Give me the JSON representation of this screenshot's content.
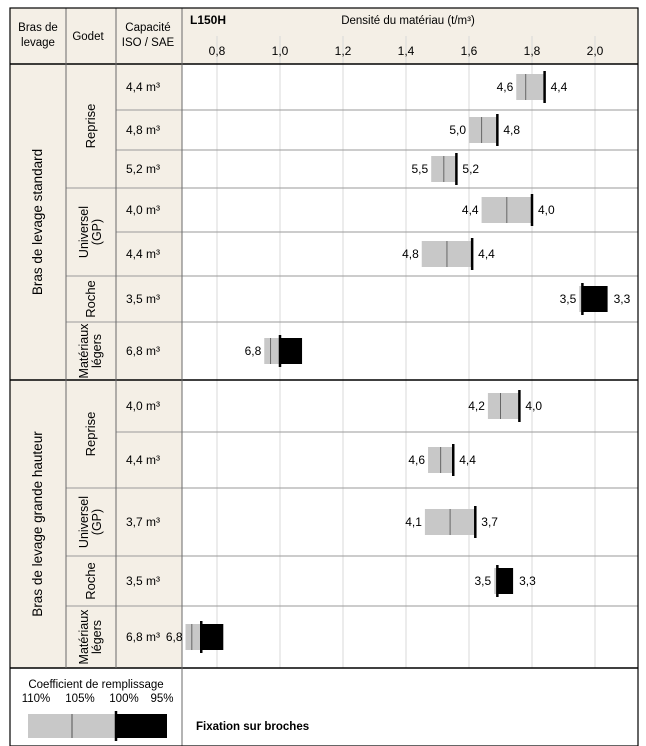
{
  "header": {
    "col_arm": "Bras de levage",
    "col_bucket": "Godet",
    "col_capacity": "Capacité ISO / SAE",
    "model": "L150H",
    "axis_title": "Densité du matériau (t/m³)"
  },
  "groups": [
    {
      "arm": "Bras de levage standard",
      "buckets": [
        {
          "type": "Reprise",
          "rows": [
            "4,4 m³",
            "4,8 m³",
            "5,2 m³"
          ]
        },
        {
          "type": "Universel (GP)",
          "rows": [
            "4,0 m³",
            "4,4 m³"
          ]
        },
        {
          "type": "Roche",
          "rows": [
            "3,5 m³"
          ]
        },
        {
          "type": "Matériaux légers",
          "rows": [
            "6,8 m³"
          ]
        }
      ]
    },
    {
      "arm": "Bras de levage grande hauteur",
      "buckets": [
        {
          "type": "Reprise",
          "rows": [
            "4,0 m³",
            "4,4 m³"
          ]
        },
        {
          "type": "Universel (GP)",
          "rows": [
            "3,7 m³"
          ]
        },
        {
          "type": "Roche",
          "rows": [
            "3,5 m³"
          ]
        },
        {
          "type": "Matériaux légers",
          "rows": [
            "6,8 m³"
          ]
        }
      ]
    }
  ],
  "legend": {
    "title": "Coefficient de remplissage",
    "percents": [
      "110%",
      "105%",
      "100%",
      "95%"
    ],
    "note": "Fixation sur broches"
  },
  "colors": {
    "grey_bar": "#c8c8c8",
    "black_bar": "#000000",
    "header_bg": "#f4efe6",
    "grid": "#d8d8d8",
    "border": "#000000"
  },
  "chart_data": {
    "type": "bar",
    "title": "L150H",
    "xlabel": "Densité du matériau (t/m³)",
    "xlim": [
      0.63,
      2.17
    ],
    "xticks": [
      "0,8",
      "1,0",
      "1,2",
      "1,4",
      "1,6",
      "1,8",
      "2,0"
    ],
    "rows": [
      {
        "arm": "Bras de levage standard",
        "bucket": "Reprise",
        "capacity": "4,4 m³",
        "d110": 1.75,
        "d105": 1.78,
        "d100": 1.84,
        "d95": 1.84,
        "label_left": "4,6",
        "label_right": "4,4"
      },
      {
        "arm": "Bras de levage standard",
        "bucket": "Reprise",
        "capacity": "4,8 m³",
        "d110": 1.6,
        "d105": 1.64,
        "d100": 1.69,
        "d95": 1.69,
        "label_left": "5,0",
        "label_right": "4,8"
      },
      {
        "arm": "Bras de levage standard",
        "bucket": "Reprise",
        "capacity": "5,2 m³",
        "d110": 1.48,
        "d105": 1.52,
        "d100": 1.56,
        "d95": 1.56,
        "label_left": "5,5",
        "label_right": "5,2"
      },
      {
        "arm": "Bras de levage standard",
        "bucket": "Universel (GP)",
        "capacity": "4,0 m³",
        "d110": 1.64,
        "d105": 1.72,
        "d100": 1.8,
        "d95": 1.8,
        "label_left": "4,4",
        "label_right": "4,0"
      },
      {
        "arm": "Bras de levage standard",
        "bucket": "Universel (GP)",
        "capacity": "4,4 m³",
        "d110": 1.45,
        "d105": 1.53,
        "d100": 1.61,
        "d95": 1.61,
        "label_left": "4,8",
        "label_right": "4,4"
      },
      {
        "arm": "Bras de levage standard",
        "bucket": "Roche",
        "capacity": "3,5 m³",
        "d110": 1.95,
        "d105": 1.95,
        "d100": 1.96,
        "d95": 2.04,
        "label_left": "3,5",
        "label_right": "3,3"
      },
      {
        "arm": "Bras de levage standard",
        "bucket": "Matériaux légers",
        "capacity": "6,8 m³",
        "d110": 0.95,
        "d105": 0.97,
        "d100": 1.0,
        "d95": 1.07,
        "label_left": "6,8",
        "label_right": ""
      },
      {
        "arm": "Bras de levage grande hauteur",
        "bucket": "Reprise",
        "capacity": "4,0 m³",
        "d110": 1.66,
        "d105": 1.7,
        "d100": 1.76,
        "d95": 1.76,
        "label_left": "4,2",
        "label_right": "4,0"
      },
      {
        "arm": "Bras de levage grande hauteur",
        "bucket": "Reprise",
        "capacity": "4,4 m³",
        "d110": 1.47,
        "d105": 1.51,
        "d100": 1.55,
        "d95": 1.55,
        "label_left": "4,6",
        "label_right": "4,4"
      },
      {
        "arm": "Bras de levage grande hauteur",
        "bucket": "Universel (GP)",
        "capacity": "3,7 m³",
        "d110": 1.46,
        "d105": 1.54,
        "d100": 1.62,
        "d95": 1.62,
        "label_left": "4,1",
        "label_right": "3,7"
      },
      {
        "arm": "Bras de levage grande hauteur",
        "bucket": "Roche",
        "capacity": "3,5 m³",
        "d110": 1.68,
        "d105": 1.68,
        "d100": 1.69,
        "d95": 1.74,
        "label_left": "3,5",
        "label_right": "3,3"
      },
      {
        "arm": "Bras de levage grande hauteur",
        "bucket": "Matériaux légers",
        "capacity": "6,8 m³",
        "d110": 0.7,
        "d105": 0.72,
        "d100": 0.75,
        "d95": 0.82,
        "label_left": "6,8",
        "label_right": ""
      }
    ]
  }
}
